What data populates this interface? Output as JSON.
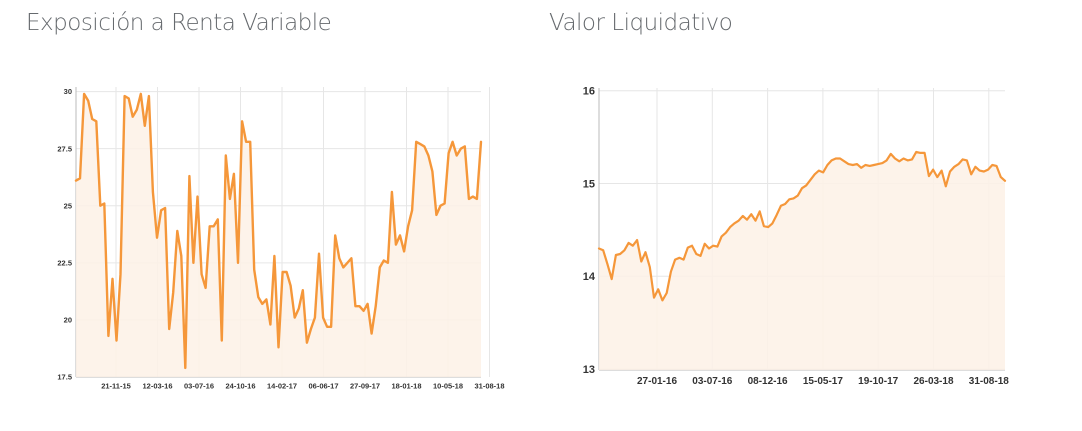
{
  "colors": {
    "line": "#f5973a",
    "fill": "#fdf1e6",
    "grid": "#e6e6e6",
    "axis": "#bbbbbb",
    "title": "#666a6e",
    "tick": "#333333"
  },
  "chart_data": [
    {
      "type": "area",
      "title": "Exposición a Renta Variable",
      "xlabel": "",
      "ylabel": "",
      "ylim": [
        17.5,
        30.2
      ],
      "yticks": [
        "17.5",
        "20",
        "22.5",
        "25",
        "27.5",
        "30"
      ],
      "ytick_values": [
        17.5,
        20,
        22.5,
        25,
        27.5,
        30
      ],
      "xticks": [
        "21-11-15",
        "12-03-16",
        "03-07-16",
        "24-10-16",
        "14-02-17",
        "06-06-17",
        "27-09-17",
        "18-01-18",
        "10-05-18",
        "31-08-18"
      ],
      "grid": true,
      "values": [
        26.1,
        26.2,
        29.9,
        29.6,
        28.8,
        28.7,
        25.0,
        25.1,
        19.3,
        21.8,
        19.1,
        22.0,
        29.8,
        29.7,
        28.9,
        29.2,
        29.9,
        28.5,
        29.8,
        25.6,
        23.6,
        24.8,
        24.9,
        19.6,
        21.2,
        23.9,
        22.8,
        17.9,
        26.3,
        22.5,
        25.4,
        22.0,
        21.4,
        24.1,
        24.1,
        24.4,
        19.1,
        27.2,
        25.3,
        26.4,
        22.5,
        28.7,
        27.8,
        27.8,
        22.2,
        21.0,
        20.7,
        20.9,
        19.8,
        22.8,
        18.8,
        22.1,
        22.1,
        21.5,
        20.1,
        20.5,
        21.3,
        19.0,
        19.6,
        20.1,
        22.9,
        20.1,
        19.7,
        19.7,
        23.7,
        22.7,
        22.3,
        22.5,
        22.7,
        20.6,
        20.6,
        20.4,
        20.7,
        19.4,
        20.6,
        22.3,
        22.6,
        22.5,
        25.6,
        23.3,
        23.7,
        23.0,
        24.1,
        24.8,
        27.8,
        27.7,
        27.6,
        27.2,
        26.5,
        24.6,
        25.0,
        25.1,
        27.3,
        27.8,
        27.2,
        27.5,
        27.6,
        25.3,
        25.4,
        25.3,
        27.8
      ]
    },
    {
      "type": "area",
      "title": "Valor Liquidativo",
      "xlabel": "",
      "ylabel": "",
      "ylim": [
        12.99,
        16.03
      ],
      "yticks": [
        "13",
        "14",
        "15",
        "16"
      ],
      "ytick_values": [
        13,
        14,
        15,
        16
      ],
      "xticks": [
        "27-01-16",
        "03-07-16",
        "08-12-16",
        "15-05-17",
        "19-10-17",
        "26-03-18",
        "31-08-18"
      ],
      "grid": true,
      "values": [
        14.3,
        14.28,
        14.13,
        13.97,
        14.23,
        14.24,
        14.28,
        14.36,
        14.33,
        14.39,
        14.16,
        14.26,
        14.1,
        13.77,
        13.86,
        13.74,
        13.82,
        14.05,
        14.18,
        14.2,
        14.18,
        14.31,
        14.33,
        14.24,
        14.22,
        14.35,
        14.3,
        14.33,
        14.32,
        14.43,
        14.47,
        14.53,
        14.57,
        14.6,
        14.65,
        14.61,
        14.67,
        14.6,
        14.7,
        14.54,
        14.53,
        14.57,
        14.66,
        14.76,
        14.78,
        14.83,
        14.84,
        14.87,
        14.95,
        14.98,
        15.04,
        15.1,
        15.14,
        15.12,
        15.2,
        15.25,
        15.27,
        15.27,
        15.24,
        15.21,
        15.2,
        15.21,
        15.17,
        15.2,
        15.19,
        15.2,
        15.21,
        15.22,
        15.25,
        15.32,
        15.27,
        15.24,
        15.27,
        15.25,
        15.26,
        15.34,
        15.33,
        15.33,
        15.08,
        15.15,
        15.07,
        15.14,
        14.97,
        15.13,
        15.18,
        15.21,
        15.26,
        15.25,
        15.1,
        15.18,
        15.14,
        15.13,
        15.15,
        15.2,
        15.19,
        15.07,
        15.03
      ]
    }
  ]
}
